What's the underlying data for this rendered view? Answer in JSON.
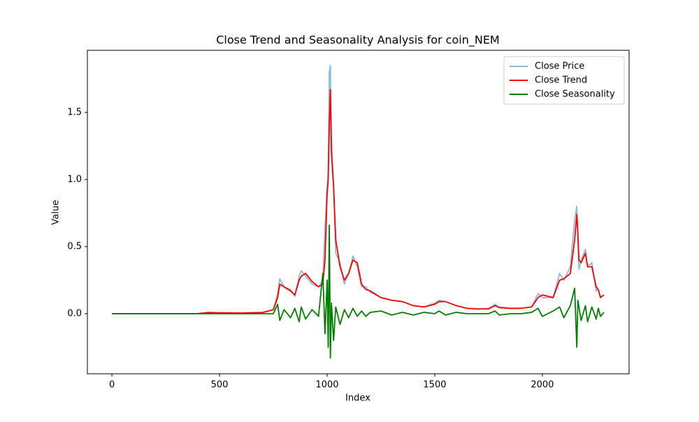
{
  "chart_data": {
    "type": "line",
    "title": "Close Trend and Seasonality Analysis for coin_NEM",
    "x_label": "Index",
    "y_label": "Value",
    "x": [
      0,
      100,
      200,
      300,
      400,
      450,
      500,
      600,
      700,
      750,
      770,
      780,
      800,
      830,
      850,
      870,
      880,
      900,
      930,
      960,
      980,
      990,
      1000,
      1005,
      1010,
      1015,
      1020,
      1030,
      1040,
      1060,
      1080,
      1100,
      1120,
      1140,
      1160,
      1180,
      1200,
      1250,
      1300,
      1350,
      1400,
      1450,
      1500,
      1520,
      1550,
      1600,
      1650,
      1700,
      1750,
      1780,
      1800,
      1850,
      1900,
      1950,
      1980,
      2000,
      2050,
      2080,
      2100,
      2130,
      2150,
      2160,
      2165,
      2170,
      2180,
      2200,
      2210,
      2230,
      2250,
      2260,
      2270,
      2286
    ],
    "series": [
      {
        "name": "Close Price",
        "color": "#8ebad9",
        "values": [
          0,
          0,
          0,
          0,
          0.001,
          0.01,
          0.008,
          0.005,
          0.01,
          0.03,
          0.15,
          0.26,
          0.2,
          0.18,
          0.13,
          0.28,
          0.32,
          0.28,
          0.22,
          0.2,
          0.25,
          0.64,
          0.95,
          1.05,
          1.8,
          1.85,
          1.3,
          0.95,
          0.45,
          0.38,
          0.22,
          0.3,
          0.43,
          0.35,
          0.2,
          0.2,
          0.16,
          0.12,
          0.1,
          0.09,
          0.06,
          0.05,
          0.08,
          0.1,
          0.09,
          0.06,
          0.04,
          0.035,
          0.04,
          0.07,
          0.05,
          0.04,
          0.04,
          0.05,
          0.15,
          0.12,
          0.12,
          0.3,
          0.25,
          0.35,
          0.7,
          0.8,
          0.55,
          0.33,
          0.4,
          0.48,
          0.35,
          0.38,
          0.17,
          0.18,
          0.12,
          0.14
        ]
      },
      {
        "name": "Close Trend",
        "color": "#ff0000",
        "values": [
          0,
          0,
          0,
          0,
          0.001,
          0.008,
          0.006,
          0.005,
          0.008,
          0.03,
          0.12,
          0.22,
          0.2,
          0.17,
          0.14,
          0.25,
          0.28,
          0.3,
          0.24,
          0.2,
          0.22,
          0.4,
          0.9,
          1.0,
          1.4,
          1.67,
          1.2,
          0.95,
          0.55,
          0.35,
          0.25,
          0.3,
          0.4,
          0.38,
          0.22,
          0.18,
          0.17,
          0.12,
          0.1,
          0.09,
          0.06,
          0.05,
          0.07,
          0.09,
          0.09,
          0.06,
          0.04,
          0.035,
          0.035,
          0.06,
          0.045,
          0.04,
          0.04,
          0.05,
          0.12,
          0.14,
          0.12,
          0.25,
          0.26,
          0.3,
          0.55,
          0.74,
          0.6,
          0.4,
          0.38,
          0.45,
          0.35,
          0.35,
          0.2,
          0.18,
          0.12,
          0.14
        ]
      },
      {
        "name": "Close Seasonality",
        "color": "#008000",
        "values": [
          0,
          0,
          0,
          0,
          0,
          0,
          0,
          0,
          0,
          0,
          0.07,
          -0.05,
          0.03,
          -0.03,
          0.04,
          -0.06,
          0.05,
          -0.04,
          0.03,
          -0.02,
          0.3,
          -0.15,
          0.25,
          -0.25,
          0.66,
          -0.33,
          0.08,
          -0.2,
          0.05,
          -0.08,
          0.03,
          -0.03,
          0.04,
          -0.02,
          0.02,
          -0.02,
          0.01,
          0.02,
          -0.01,
          0.01,
          -0.01,
          0.01,
          0,
          0.02,
          -0.01,
          0.01,
          0,
          0,
          0,
          0.02,
          -0.01,
          0,
          0,
          0.01,
          0.04,
          -0.02,
          0.02,
          0.05,
          -0.03,
          0.06,
          0.19,
          -0.25,
          0.1,
          0.05,
          -0.05,
          0.06,
          -0.06,
          0.05,
          -0.04,
          0.04,
          -0.02,
          0.01
        ]
      }
    ],
    "xlim": [
      -114,
      2403
    ],
    "ylim": [
      -0.448,
      1.963
    ],
    "xticks": [
      0,
      500,
      1000,
      1500,
      2000
    ],
    "yticks": [
      {
        "value": 0,
        "label": "0.0"
      },
      {
        "value": 0.5,
        "label": "0.5"
      },
      {
        "value": 1,
        "label": "1.0"
      },
      {
        "value": 1.5,
        "label": "1.5"
      }
    ],
    "legend": "upper right"
  }
}
